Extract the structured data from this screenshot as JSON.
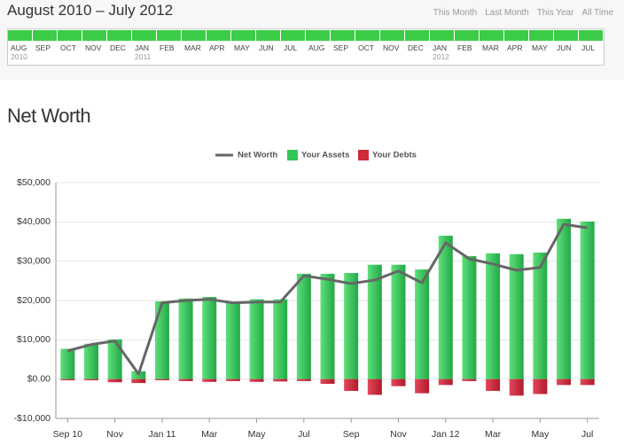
{
  "header": {
    "title": "August 2010 – July 2012",
    "links": [
      "This Month",
      "Last Month",
      "This Year",
      "All Time"
    ]
  },
  "timeline": {
    "months": [
      {
        "label": "AUG",
        "year": "2010"
      },
      {
        "label": "SEP"
      },
      {
        "label": "OCT"
      },
      {
        "label": "NOV"
      },
      {
        "label": "DEC"
      },
      {
        "label": "JAN",
        "year": "2011"
      },
      {
        "label": "FEB"
      },
      {
        "label": "MAR"
      },
      {
        "label": "APR"
      },
      {
        "label": "MAY"
      },
      {
        "label": "JUN"
      },
      {
        "label": "JUL"
      },
      {
        "label": "AUG"
      },
      {
        "label": "SEP"
      },
      {
        "label": "OCT"
      },
      {
        "label": "NOV"
      },
      {
        "label": "DEC"
      },
      {
        "label": "JAN",
        "year": "2012"
      },
      {
        "label": "FEB"
      },
      {
        "label": "MAR"
      },
      {
        "label": "APR"
      },
      {
        "label": "MAY"
      },
      {
        "label": "JUN"
      },
      {
        "label": "JUL"
      }
    ]
  },
  "chart_data": {
    "type": "bar",
    "title": "Net Worth",
    "categories": [
      "Sep 10",
      null,
      "Nov",
      null,
      "Jan 11",
      null,
      "Mar",
      null,
      "May",
      null,
      "Jul",
      null,
      "Sep",
      null,
      "Nov",
      null,
      "Jan 12",
      null,
      "Mar",
      null,
      "May",
      null,
      "Jul"
    ],
    "series": [
      {
        "name": "Your Assets",
        "type": "bar",
        "color": "#34c559",
        "values": [
          7700,
          9000,
          10100,
          2000,
          19800,
          20500,
          20900,
          19400,
          20300,
          20300,
          26800,
          26800,
          27000,
          29100,
          29100,
          27900,
          36500,
          31300,
          32000,
          31800,
          32200,
          40800,
          40100
        ]
      },
      {
        "name": "Your Debts",
        "type": "bar",
        "color": "#cf2a3c",
        "values": [
          -300,
          -300,
          -800,
          -1000,
          -300,
          -500,
          -700,
          -500,
          -700,
          -600,
          -500,
          -1200,
          -3000,
          -4000,
          -1800,
          -3600,
          -1500,
          -500,
          -3000,
          -4200,
          -3800,
          -1500,
          -1500
        ]
      },
      {
        "name": "Net Worth",
        "type": "line",
        "color": "#666666",
        "values": [
          7200,
          8800,
          9700,
          1300,
          19400,
          20000,
          20300,
          19400,
          19600,
          19600,
          26300,
          25400,
          24300,
          25200,
          27500,
          24500,
          34700,
          30600,
          29300,
          27700,
          28400,
          39400,
          38500
        ]
      }
    ],
    "ylim": [
      -10000,
      50000
    ],
    "yticks": [
      {
        "value": -10000,
        "label": "-$10,000"
      },
      {
        "value": 0,
        "label": "$0.00"
      },
      {
        "value": 10000,
        "label": "$10,000"
      },
      {
        "value": 20000,
        "label": "$20,000"
      },
      {
        "value": 30000,
        "label": "$30,000"
      },
      {
        "value": 40000,
        "label": "$40,000"
      },
      {
        "value": 50000,
        "label": "$50,000"
      }
    ],
    "grid": true,
    "legend": "top"
  }
}
